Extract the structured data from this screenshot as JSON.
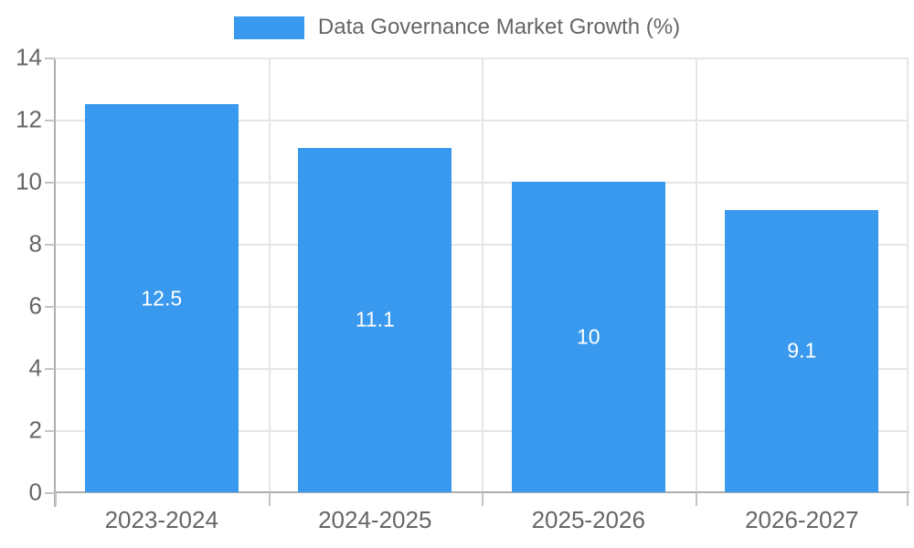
{
  "chart_data": {
    "type": "bar",
    "title": "Data Governance Market Growth (%)",
    "legend": {
      "position": "top",
      "entries": [
        {
          "label": "Data Governance Market Growth (%)",
          "swatch_color": "#3999EE"
        }
      ]
    },
    "categories": [
      "2023-2024",
      "2024-2025",
      "2025-2026",
      "2026-2027"
    ],
    "values": [
      12.5,
      11.1,
      10,
      9.1
    ],
    "bar_labels": [
      "12.5",
      "11.1",
      "10",
      "9.1"
    ],
    "xlabel": "",
    "ylabel": "",
    "ylim": [
      0,
      14
    ],
    "yticks": [
      0,
      2,
      4,
      6,
      8,
      10,
      12,
      14
    ],
    "grid": true,
    "colors": {
      "bar": "#3999EE",
      "bar_label_text": "#ffffff",
      "axis_text": "#666666",
      "gridline": "#E6E6E6",
      "axis_line": "#ADADAD",
      "background": "#ffffff"
    }
  }
}
